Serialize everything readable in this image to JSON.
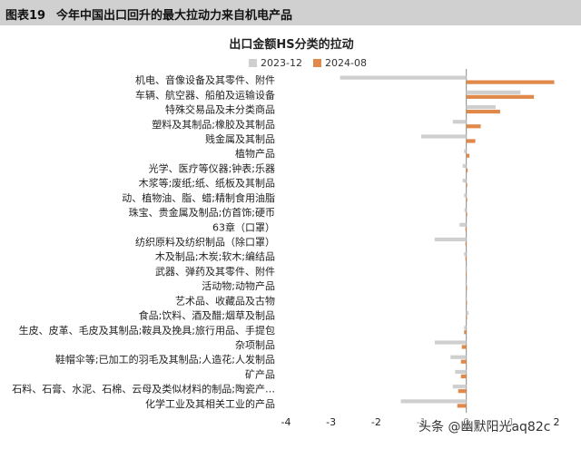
{
  "header": {
    "figure_label": "图表19",
    "figure_title": "今年中国出口回升的最大拉动力来自机电产品"
  },
  "watermark": "头条 @幽默阳光aq82c",
  "colors": {
    "header_bg": "#d0d0d0",
    "series_2023": "#cfcfcf",
    "series_2024": "#e0894a",
    "axis": "#888888"
  },
  "chart_data": {
    "type": "bar",
    "orientation": "horizontal",
    "title": "出口金额HS分类的拉动",
    "xlim": [
      -4,
      2
    ],
    "xticks": [
      -4,
      -3,
      -2,
      -1,
      0,
      1,
      2
    ],
    "grid": false,
    "legend_position": "top",
    "categories": [
      "机电、音像设备及其零件、附件",
      "车辆、航空器、船舶及运输设备",
      "特殊交易品及未分类商品",
      "塑料及其制品;橡胶及其制品",
      "贱金属及其制品",
      "植物产品",
      "光学、医疗等仪器;钟表;乐器",
      "木浆等;废纸;纸、纸板及其制品",
      "动、植物油、脂、蜡;精制食用油脂",
      "珠宝、贵金属及制品;仿首饰;硬币",
      "63章（口罩）",
      "纺织原料及纺织制品（除口罩）",
      "木及制品;木炭;软木;编结品",
      "武器、弹药及其零件、附件",
      "活动物;动物产品",
      "艺术品、收藏品及古物",
      "食品;饮料、酒及醋;烟草及制品",
      "生皮、皮革、毛皮及其制品;鞍具及挽具;旅行用品、手提包",
      "杂项制品",
      "鞋帽伞等;已加工的羽毛及其制品;人造花;人发制品",
      "矿产品",
      "石料、石膏、水泥、石棉、云母及类似材料的制品;陶瓷产…",
      "化学工业及其相关工业的产品"
    ],
    "series": [
      {
        "name": "2023-12",
        "color": "#cfcfcf",
        "values": [
          -2.8,
          1.2,
          0.65,
          -0.3,
          -1.0,
          -0.05,
          -0.08,
          -0.08,
          -0.05,
          -0.04,
          -0.15,
          -0.7,
          -0.05,
          -0.02,
          -0.02,
          -0.02,
          0.05,
          -0.05,
          -0.7,
          -0.35,
          -0.25,
          -0.3,
          -1.45
        ]
      },
      {
        "name": "2024-08",
        "color": "#e0894a",
        "values": [
          1.95,
          1.5,
          0.75,
          0.32,
          0.2,
          0.07,
          0.03,
          0.02,
          0.02,
          0.02,
          -0.02,
          -0.02,
          -0.02,
          -0.01,
          0.01,
          0.01,
          0.01,
          -0.05,
          -0.1,
          -0.12,
          -0.12,
          -0.18,
          -0.2
        ]
      }
    ]
  }
}
